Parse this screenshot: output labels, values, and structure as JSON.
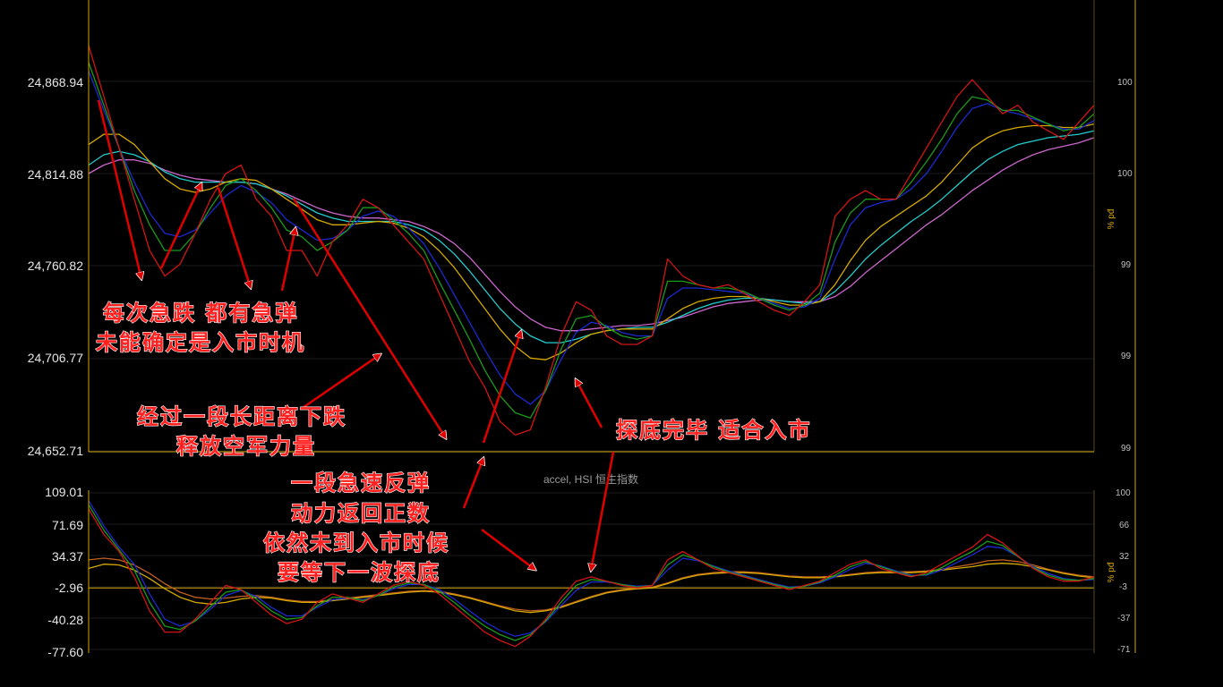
{
  "chart_data": [
    {
      "type": "line",
      "panel": "price",
      "left_axis_ticks": [
        "24,868.94",
        "24,814.88",
        "24,760.82",
        "24,706.77",
        "24,652.71"
      ],
      "right_axis_ticks": [
        "100",
        "100",
        "99",
        "99",
        "99"
      ],
      "right_axis_unit": "% pđ",
      "ylim": [
        24652.71,
        24868.94
      ],
      "grid": true,
      "series": [
        {
          "color": "#d11515",
          "values": [
            24890,
            24860,
            24830,
            24800,
            24770,
            24755,
            24762,
            24780,
            24800,
            24815,
            24820,
            24800,
            24790,
            24770,
            24770,
            24755,
            24775,
            24785,
            24800,
            24795,
            24785,
            24775,
            24765,
            24745,
            24725,
            24705,
            24690,
            24670,
            24662,
            24665,
            24690,
            24720,
            24740,
            24735,
            24720,
            24715,
            24715,
            24720,
            24765,
            24755,
            24750,
            24748,
            24750,
            24745,
            24740,
            24735,
            24732,
            24740,
            24750,
            24790,
            24800,
            24805,
            24800,
            24800,
            24815,
            24830,
            24845,
            24860,
            24870,
            24860,
            24850,
            24855,
            24845,
            24840,
            24835,
            24845,
            24855
          ]
        },
        {
          "color": "#1a9a1a",
          "values": [
            24880,
            24855,
            24830,
            24805,
            24785,
            24770,
            24770,
            24780,
            24795,
            24808,
            24812,
            24805,
            24795,
            24782,
            24778,
            24770,
            24775,
            24782,
            24795,
            24795,
            24788,
            24780,
            24770,
            24752,
            24735,
            24718,
            24700,
            24685,
            24675,
            24672,
            24688,
            24712,
            24730,
            24732,
            24725,
            24720,
            24718,
            24720,
            24752,
            24752,
            24750,
            24748,
            24748,
            24746,
            24742,
            24738,
            24735,
            24738,
            24745,
            24775,
            24792,
            24800,
            24800,
            24800,
            24810,
            24822,
            24835,
            24850,
            24860,
            24858,
            24852,
            24852,
            24848,
            24844,
            24840,
            24842,
            24850
          ]
        },
        {
          "color": "#1a2ad1",
          "values": [
            24875,
            24852,
            24830,
            24810,
            24792,
            24780,
            24778,
            24782,
            24792,
            24802,
            24808,
            24804,
            24798,
            24788,
            24782,
            24776,
            24777,
            24782,
            24790,
            24793,
            24790,
            24783,
            24774,
            24760,
            24744,
            24728,
            24712,
            24697,
            24686,
            24680,
            24688,
            24706,
            24722,
            24728,
            24726,
            24722,
            24720,
            24720,
            24742,
            24748,
            24748,
            24747,
            24746,
            24745,
            24742,
            24739,
            24736,
            24737,
            24742,
            24765,
            24785,
            24795,
            24798,
            24800,
            24806,
            24815,
            24828,
            24842,
            24853,
            24856,
            24852,
            24850,
            24847,
            24844,
            24841,
            24841,
            24846
          ]
        },
        {
          "color": "#d4a800",
          "values": [
            24832,
            24838,
            24838,
            24832,
            24822,
            24812,
            24806,
            24804,
            24806,
            24810,
            24812,
            24811,
            24806,
            24800,
            24794,
            24788,
            24785,
            24785,
            24786,
            24787,
            24786,
            24783,
            24778,
            24770,
            24760,
            24748,
            24736,
            24724,
            24714,
            24707,
            24706,
            24710,
            24716,
            24721,
            24723,
            24724,
            24724,
            24724,
            24730,
            24736,
            24740,
            24742,
            24743,
            24743,
            24742,
            24740,
            24738,
            24738,
            24740,
            24750,
            24764,
            24776,
            24784,
            24790,
            24796,
            24802,
            24810,
            24820,
            24830,
            24836,
            24840,
            24842,
            24843,
            24843,
            24842,
            24842,
            24844
          ]
        },
        {
          "color": "#22cccc",
          "values": [
            24820,
            24826,
            24828,
            24826,
            24822,
            24816,
            24812,
            24810,
            24810,
            24810,
            24810,
            24809,
            24806,
            24802,
            24797,
            24792,
            24789,
            24787,
            24787,
            24787,
            24787,
            24785,
            24782,
            24776,
            24768,
            24758,
            24747,
            24736,
            24727,
            24720,
            24716,
            24716,
            24718,
            24721,
            24723,
            24724,
            24725,
            24725,
            24728,
            24732,
            24736,
            24739,
            24741,
            24742,
            24742,
            24741,
            24740,
            24739,
            24740,
            24746,
            24755,
            24765,
            24773,
            24780,
            24787,
            24793,
            24800,
            24808,
            24816,
            24823,
            24828,
            24832,
            24834,
            24836,
            24837,
            24838,
            24840
          ]
        },
        {
          "color": "#cc66cc",
          "values": [
            24815,
            24820,
            24823,
            24823,
            24821,
            24817,
            24814,
            24812,
            24811,
            24810,
            24810,
            24809,
            24806,
            24803,
            24799,
            24795,
            24792,
            24790,
            24789,
            24789,
            24788,
            24787,
            24784,
            24780,
            24774,
            24766,
            24756,
            24746,
            24737,
            24730,
            24725,
            24723,
            24723,
            24724,
            24725,
            24726,
            24726,
            24727,
            24729,
            24731,
            24734,
            24737,
            24739,
            24740,
            24741,
            24741,
            24740,
            24740,
            24740,
            24743,
            24749,
            24757,
            24764,
            24771,
            24778,
            24785,
            24791,
            24798,
            24805,
            24811,
            24817,
            24822,
            24826,
            24829,
            24831,
            24833,
            24836
          ]
        }
      ]
    },
    {
      "type": "line",
      "panel": "accel",
      "title": "accel, HSI 恒生指数",
      "left_axis_ticks": [
        "109.01",
        "71.69",
        "34.37",
        "-2.96",
        "-40.28",
        "-77.60"
      ],
      "right_axis_ticks": [
        "100",
        "66",
        "32",
        "-3",
        "-37",
        "-71"
      ],
      "right_axis_unit": "% pđ",
      "ylim": [
        -77.6,
        109.01
      ],
      "zero_line": -2.96,
      "grid": true,
      "series": [
        {
          "color": "#d11515",
          "values": [
            90,
            60,
            40,
            10,
            -30,
            -55,
            -55,
            -40,
            -20,
            0,
            -5,
            -20,
            -35,
            -45,
            -40,
            -20,
            -10,
            -15,
            -20,
            -10,
            0,
            5,
            0,
            -10,
            -25,
            -40,
            -55,
            -65,
            -72,
            -60,
            -40,
            -15,
            5,
            10,
            5,
            0,
            -3,
            0,
            30,
            40,
            30,
            20,
            15,
            10,
            5,
            0,
            -5,
            0,
            5,
            15,
            25,
            30,
            20,
            15,
            10,
            15,
            25,
            35,
            45,
            60,
            50,
            35,
            20,
            10,
            5,
            5,
            10
          ]
        },
        {
          "color": "#1a9a1a",
          "values": [
            95,
            65,
            42,
            18,
            -20,
            -48,
            -52,
            -42,
            -25,
            -8,
            -5,
            -16,
            -30,
            -40,
            -38,
            -24,
            -14,
            -14,
            -18,
            -12,
            -2,
            3,
            1,
            -7,
            -20,
            -35,
            -48,
            -58,
            -65,
            -58,
            -42,
            -20,
            0,
            7,
            5,
            1,
            -2,
            0,
            24,
            36,
            30,
            22,
            16,
            11,
            6,
            1,
            -3,
            -1,
            4,
            12,
            22,
            28,
            22,
            16,
            11,
            13,
            21,
            31,
            40,
            52,
            47,
            34,
            21,
            12,
            7,
            6,
            8
          ]
        },
        {
          "color": "#1a2ad1",
          "values": [
            100,
            70,
            45,
            25,
            -10,
            -40,
            -48,
            -42,
            -28,
            -12,
            -6,
            -13,
            -26,
            -36,
            -36,
            -26,
            -17,
            -15,
            -17,
            -12,
            -4,
            1,
            1,
            -5,
            -16,
            -30,
            -43,
            -53,
            -60,
            -56,
            -43,
            -24,
            -6,
            4,
            4,
            1,
            -1,
            0,
            18,
            32,
            29,
            23,
            17,
            12,
            7,
            2,
            -2,
            -1,
            3,
            10,
            19,
            26,
            23,
            17,
            12,
            12,
            18,
            27,
            36,
            46,
            44,
            34,
            22,
            14,
            8,
            6,
            7
          ]
        },
        {
          "color": "#d4a800",
          "values": [
            20,
            25,
            24,
            18,
            8,
            -4,
            -14,
            -20,
            -22,
            -20,
            -16,
            -14,
            -15,
            -18,
            -20,
            -20,
            -18,
            -16,
            -14,
            -12,
            -10,
            -8,
            -7,
            -8,
            -11,
            -15,
            -20,
            -25,
            -30,
            -32,
            -30,
            -26,
            -20,
            -14,
            -9,
            -6,
            -4,
            -3,
            2,
            8,
            12,
            14,
            15,
            15,
            14,
            12,
            10,
            9,
            9,
            10,
            12,
            14,
            15,
            15,
            15,
            16,
            18,
            20,
            22,
            25,
            26,
            25,
            22,
            18,
            14,
            11,
            9
          ]
        },
        {
          "color": "#c06020",
          "values": [
            30,
            32,
            30,
            24,
            14,
            2,
            -8,
            -14,
            -16,
            -15,
            -13,
            -12,
            -14,
            -17,
            -19,
            -19,
            -17,
            -15,
            -13,
            -11,
            -9,
            -7,
            -6,
            -7,
            -10,
            -14,
            -19,
            -24,
            -28,
            -30,
            -29,
            -25,
            -19,
            -13,
            -8,
            -5,
            -3,
            -2,
            3,
            9,
            13,
            15,
            16,
            16,
            15,
            13,
            11,
            10,
            10,
            11,
            13,
            15,
            16,
            16,
            16,
            17,
            19,
            22,
            25,
            29,
            30,
            28,
            24,
            19,
            15,
            12,
            10
          ]
        }
      ]
    }
  ],
  "annotations": {
    "a1": [
      "每次急跌 都有急弹",
      "未能确定是入市时机"
    ],
    "a2": [
      "经过一段长距离下跌",
      "释放空军力量"
    ],
    "a3": [
      "一段急速反弹",
      "动力返回正数",
      "依然未到入市时候",
      "要等下一波探底"
    ],
    "a4": [
      "探底完毕 适合入市"
    ]
  },
  "colors": {
    "background": "#000000",
    "axis": "#d4a800",
    "grid": "#1c1c1c",
    "annotation_text": "#ff2020",
    "arrow": "#e00000"
  }
}
